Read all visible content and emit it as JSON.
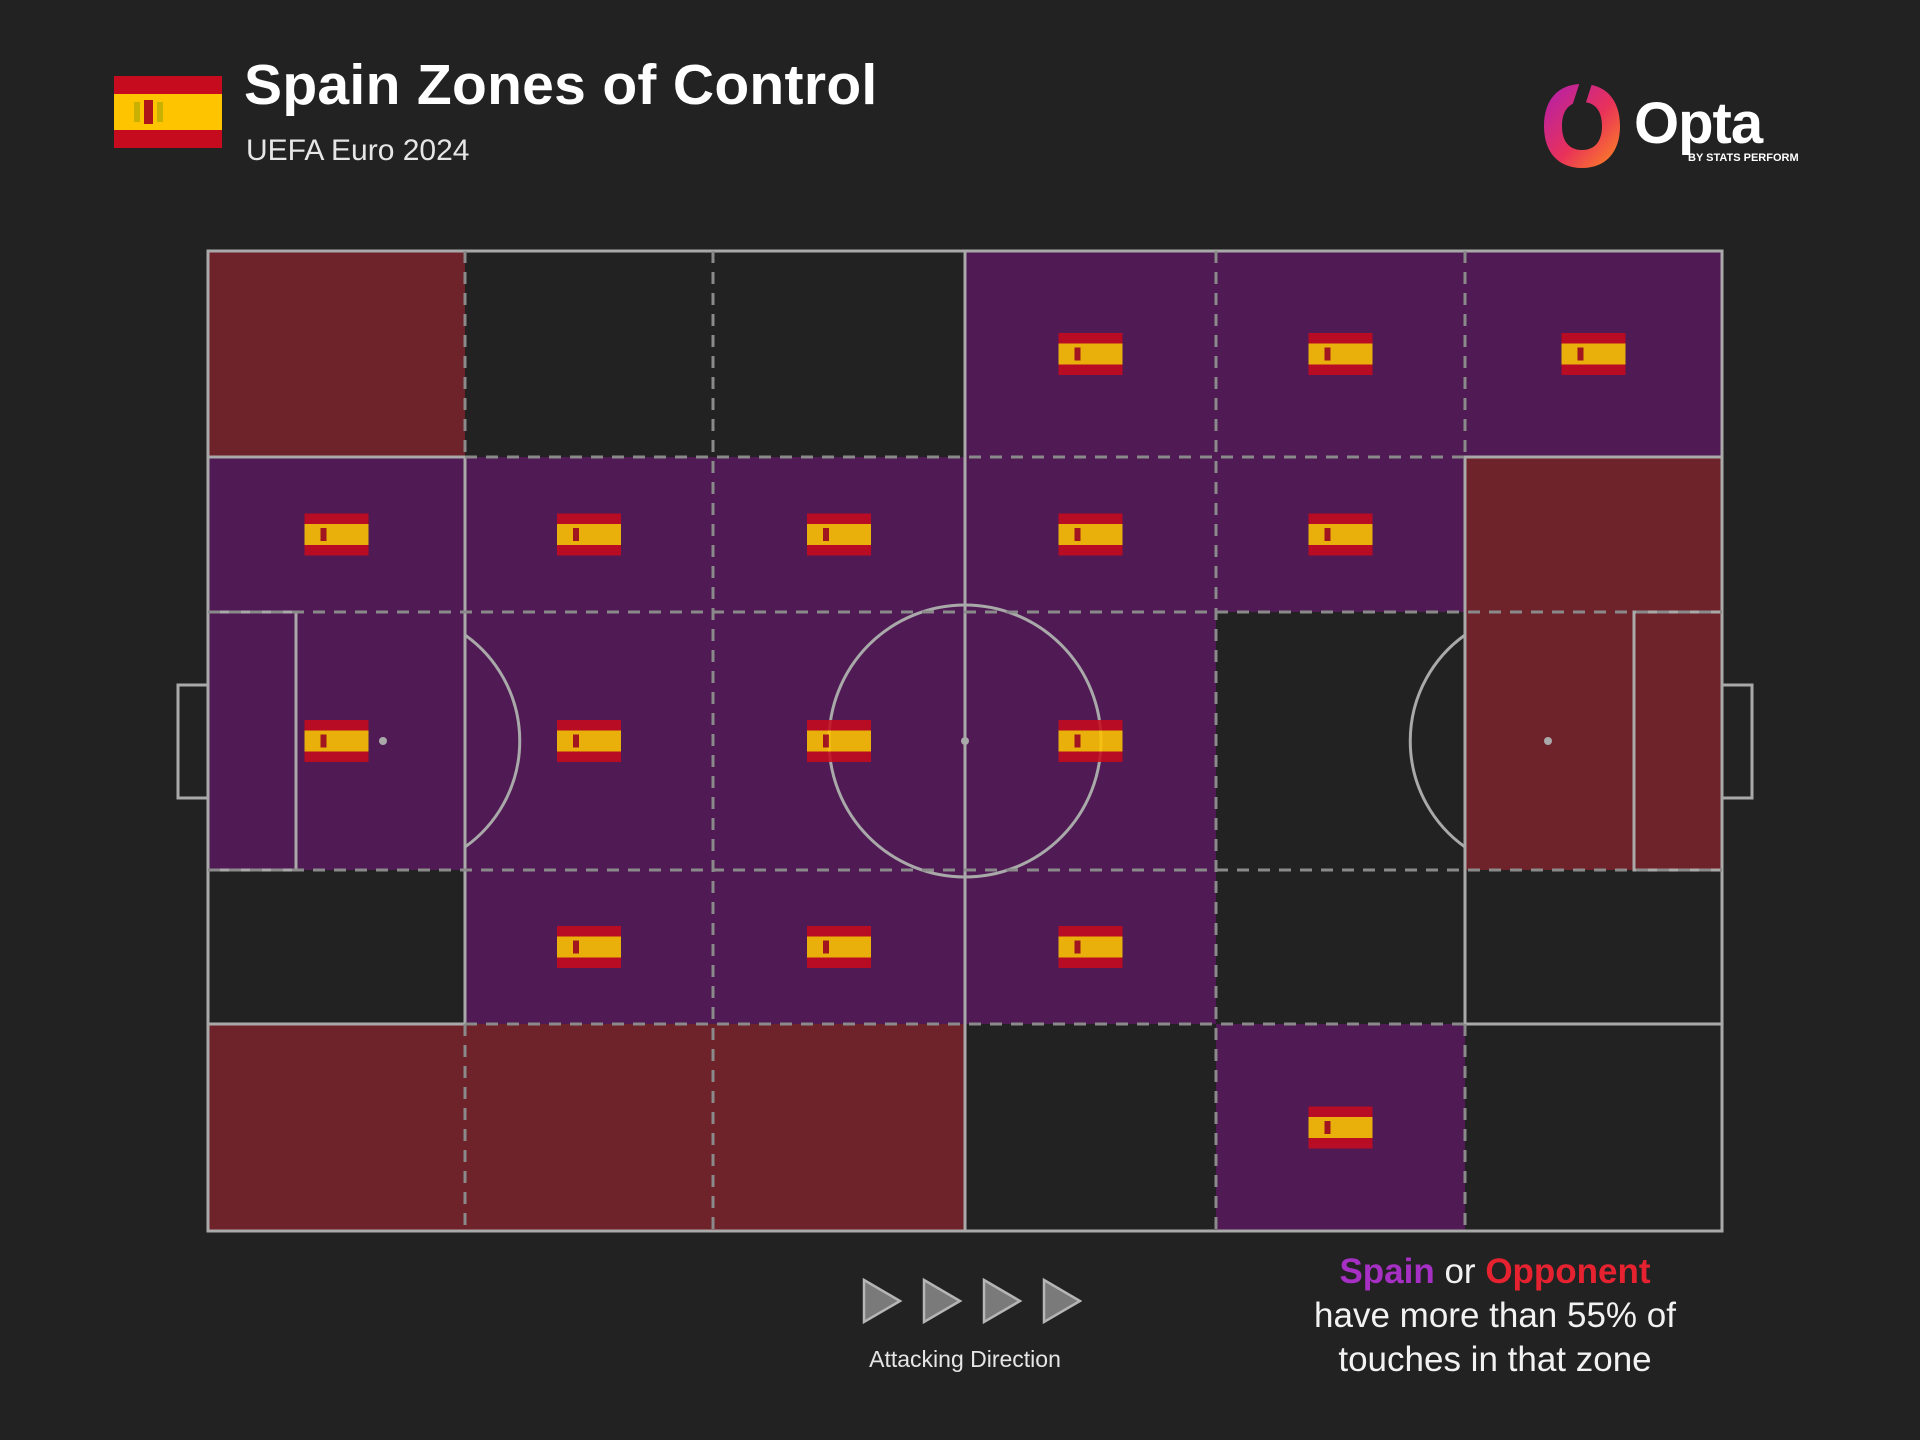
{
  "header": {
    "title": "Spain Zones of Control",
    "subtitle": "UEFA Euro 2024"
  },
  "brand": {
    "name": "Opta",
    "tagline": "BY STATS PERFORM"
  },
  "colors": {
    "background": "#222222",
    "spain_zone": "#501a55",
    "opponent_zone": "#6e2229",
    "neutral_zone": "#222222",
    "pitch_lines": "#a9a9a9",
    "spain_text": "#a62fc4",
    "opponent_text": "#e62230",
    "flag_red": "#c60b1e",
    "flag_yellow": "#ffc400"
  },
  "direction_label": "Attacking Direction",
  "legend": {
    "team": "Spain",
    "or": " or ",
    "opponent": "Opponent",
    "line2": "have more than 55% of",
    "line3": "touches in that zone"
  },
  "chart_data": {
    "type": "heatmap",
    "title": "Spain Zones of Control",
    "subtitle": "UEFA Euro 2024",
    "threshold_percent": 55,
    "legend_values": {
      "S": "Spain",
      "O": "Opponent",
      "N": "Neither"
    },
    "columns": 6,
    "rows": 5,
    "row_order": "top to bottom",
    "column_order": "left to right (attacking direction)",
    "grid": [
      [
        "O",
        "N",
        "N",
        "S",
        "S",
        "S"
      ],
      [
        "S",
        "S",
        "S",
        "S",
        "S",
        "O"
      ],
      [
        "S",
        "S",
        "S",
        "S",
        "N",
        "O"
      ],
      [
        "N",
        "S",
        "S",
        "S",
        "N",
        "N"
      ],
      [
        "O",
        "O",
        "O",
        "N",
        "S",
        "N"
      ]
    ]
  }
}
